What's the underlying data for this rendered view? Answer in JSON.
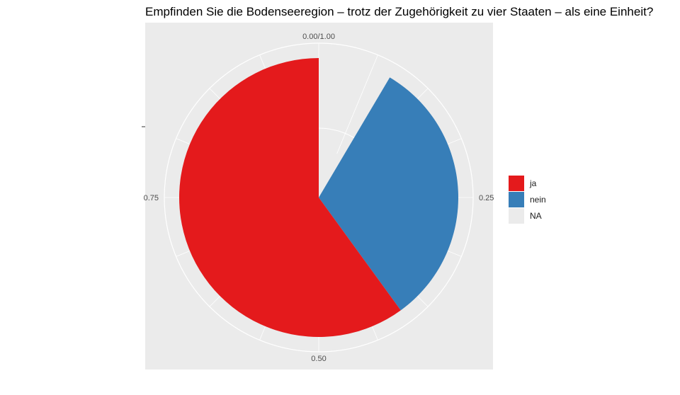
{
  "chart_data": {
    "type": "pie",
    "title": "Empfinden Sie die Bodenseeregion – trotz der Zugehörigkeit zu vier Staaten – als eine Einheit?",
    "coord": "polar",
    "angle_axis_ticks": [
      "0.00/1.00",
      "0.25",
      "0.50",
      "0.75"
    ],
    "angle_tick_values": [
      0,
      0.25,
      0.5,
      0.75
    ],
    "slices": [
      {
        "label": "NA",
        "start": 0.0,
        "end": 0.085,
        "color": "#EBEBEB",
        "radius_fraction": 0.34
      },
      {
        "label": "nein",
        "start": 0.085,
        "end": 0.4,
        "color": "#377EB8",
        "radius_fraction": 1.0
      },
      {
        "label": "ja",
        "start": 0.4,
        "end": 1.0,
        "color": "#E41A1C",
        "radius_fraction": 1.0
      }
    ],
    "legend": {
      "position": "right",
      "items": [
        {
          "label": "ja",
          "color": "#E41A1C"
        },
        {
          "label": "nein",
          "color": "#377EB8"
        },
        {
          "label": "NA",
          "color": "#EBEBEB"
        }
      ]
    },
    "panel_background": "#EBEBEB",
    "grid": true
  }
}
